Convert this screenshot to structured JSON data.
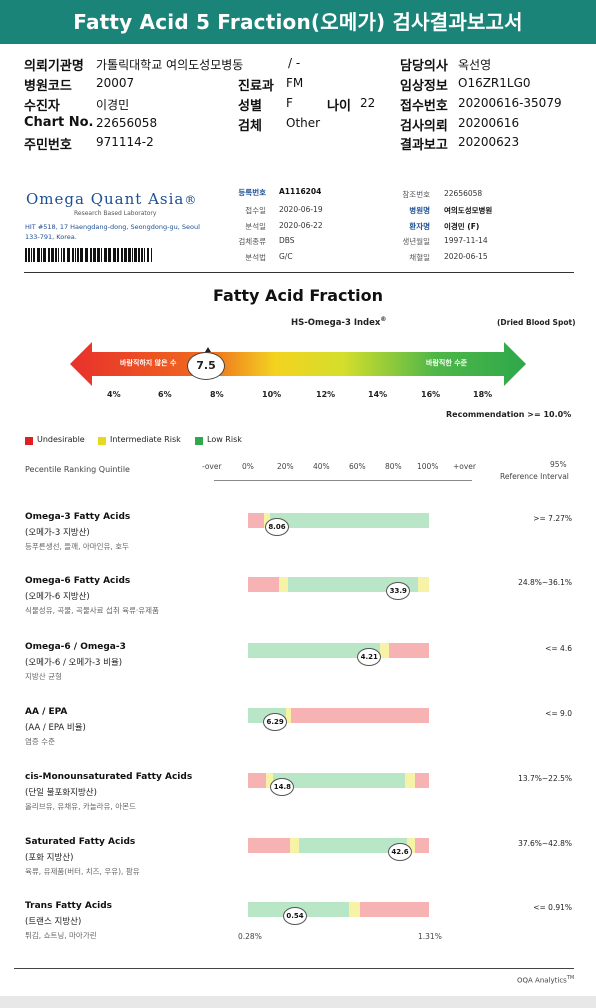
{
  "banner": {
    "title": "Fatty Acid 5 Fraction(오메가) 검사결과보고서"
  },
  "patient": {
    "institution_label": "의뢰기관명",
    "institution_value": "가톨릭대학교 여의도성모병동",
    "doctor_label": "담당의사",
    "doctor_value": "옥선영",
    "hospital_code_label": "병원코드",
    "hospital_code_value": "20007",
    "dept_label": "진료과",
    "dept_value": "FM",
    "clinical_info_label": "임상정보",
    "clinical_info_value": "O16ZR1LG0",
    "recipient_label": "수진자",
    "recipient_value": "이경민",
    "sex_label": "성별",
    "sex_value": "F",
    "age_label": "나이",
    "age_value": "22",
    "receipt_no_label": "접수번호",
    "receipt_no_value": "20200616-35079",
    "chart_label": "Chart No.",
    "chart_value": "22656058",
    "specimen_label": "검체",
    "specimen_value": "Other",
    "request_label": "검사의뢰",
    "request_value": "20200616",
    "id_label": "주민번호",
    "id_value": "971114-2",
    "report_label": "결과보고",
    "report_value": "20200623",
    "slash": "/ -"
  },
  "lab": {
    "logo_main": "Omega Quant Asia",
    "logo_tm": "®",
    "logo_sub": "Research Based Laboratory",
    "address": "HIT #518, 17 Haengdang-dong, Seongdong-gu, Seoul 133-791, Korea.",
    "fields": {
      "reg_no_label": "등록번호",
      "reg_no": "A1116204",
      "receipt_date_label": "접수일",
      "receipt_date": "2020-06-19",
      "analysis_date_label": "분석일",
      "analysis_date": "2020-06-22",
      "specimen_type_label": "검체종류",
      "specimen_type": "DBS",
      "method_label": "분석법",
      "method": "G/C",
      "ref_no_label": "참조번호",
      "ref_no": "22656058",
      "hospital_label": "병원명",
      "hospital": "여의도성모병원",
      "patient_label": "환자명",
      "patient": "이경민 (F)",
      "dob_label": "생년월일",
      "dob": "1997-11-14",
      "collect_label": "채혈일",
      "collect": "2020-06-15"
    }
  },
  "index_section": {
    "title": "Fatty Acid Fraction",
    "subtitle": "HS-Omega-3 Index",
    "subtitle_sup": "®",
    "dbs_note": "(Dried Blood Spot)",
    "arrow_left_text": "바람직하지 않은 수",
    "arrow_right_text": "바람직한 수준",
    "value": "7.5",
    "ticks": [
      "4%",
      "6%",
      "8%",
      "10%",
      "12%",
      "14%",
      "16%",
      "18%"
    ],
    "recommendation": "Recommendation  >= 10.0%"
  },
  "legend": [
    {
      "label": "Undesirable",
      "color": "#e02020"
    },
    {
      "label": "Intermediate Risk",
      "color": "#e8d820"
    },
    {
      "label": "Low Risk",
      "color": "#2ea84a"
    }
  ],
  "percentile_header": {
    "label": "Pecentile Ranking Quintile",
    "ticks": [
      "-over",
      "0%",
      "20%",
      "40%",
      "60%",
      "80%",
      "100%",
      "+over"
    ],
    "ref_line1": "95%",
    "ref_line2": "Reference Interval"
  },
  "colors": {
    "red": "#f7b3b3",
    "yellow": "#f7f3a6",
    "green": "#b9e6c6",
    "teal": "#1a8478"
  },
  "rows": [
    {
      "title": "Omega-3 Fatty Acids",
      "sub": "(오메가-3 지방산)",
      "note": "등푸른생선, 들깨, 아마인유, 호두",
      "value": "8.06",
      "ref": ">= 7.27%",
      "position": 0.16,
      "segments": [
        [
          "red",
          0.09
        ],
        [
          "yellow",
          0.03
        ],
        [
          "green",
          0.88
        ]
      ]
    },
    {
      "title": "Omega-6 Fatty Acids",
      "sub": "(오메가-6 지방산)",
      "note": "식물성유, 곡물, 곡물사료 섭취 육류·유제품",
      "value": "33.9",
      "ref": "24.8%~36.1%",
      "position": 0.83,
      "segments": [
        [
          "red",
          0.17
        ],
        [
          "yellow",
          0.05
        ],
        [
          "green",
          0.72
        ],
        [
          "yellow",
          0.06
        ]
      ]
    },
    {
      "title": "Omega-6 / Omega-3",
      "sub": "(오메가-6 / 오메가-3 비율)",
      "note": "지방산 균형",
      "value": "4.21",
      "ref": "<= 4.6",
      "position": 0.67,
      "segments": [
        [
          "green",
          0.73
        ],
        [
          "yellow",
          0.05
        ],
        [
          "red",
          0.22
        ]
      ]
    },
    {
      "title": "AA / EPA",
      "sub": "(AA / EPA 비율)",
      "note": "염증 수준",
      "value": "6.29",
      "ref": "<= 9.0",
      "position": 0.15,
      "segments": [
        [
          "green",
          0.21
        ],
        [
          "yellow",
          0.03
        ],
        [
          "red",
          0.76
        ]
      ]
    },
    {
      "title": "cis-Monounsaturated Fatty Acids",
      "sub": "(단일 불포화지방산)",
      "note": "올리브유, 유채유, 카놀라유, 아몬드",
      "value": "14.8",
      "ref": "13.7%~22.5%",
      "position": 0.19,
      "segments": [
        [
          "red",
          0.1
        ],
        [
          "yellow",
          0.04
        ],
        [
          "green",
          0.73
        ],
        [
          "yellow",
          0.05
        ],
        [
          "red",
          0.08
        ]
      ]
    },
    {
      "title": "Saturated Fatty Acids",
      "sub": "(포화 지방산)",
      "note": "육류, 유제품(버터, 치즈, 우유), 팜유",
      "value": "42.6",
      "ref": "37.6%~42.8%",
      "position": 0.84,
      "segments": [
        [
          "red",
          0.23
        ],
        [
          "yellow",
          0.05
        ],
        [
          "green",
          0.6
        ],
        [
          "yellow",
          0.04
        ],
        [
          "red",
          0.08
        ]
      ]
    },
    {
      "title": "Trans Fatty Acids",
      "sub": "(트랜스 지방산)",
      "note": "튀김, 쇼트닝, 마아가린",
      "value": "0.54",
      "ref": "<= 0.91%",
      "position": 0.26,
      "segments": [
        [
          "green",
          0.56
        ],
        [
          "yellow",
          0.06
        ],
        [
          "red",
          0.38
        ]
      ]
    }
  ],
  "trans_scale": {
    "left": "0.28%",
    "right": "1.31%"
  },
  "footer": {
    "brand": "OQA Analytics",
    "tm": "TM"
  }
}
